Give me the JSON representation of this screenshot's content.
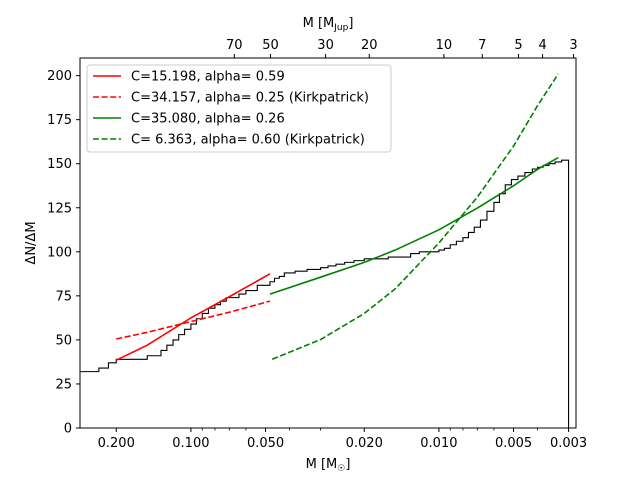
{
  "chart_data": {
    "type": "line",
    "xlabel": "M [M",
    "xlabel_sub": "☉",
    "xlabel_end": "]",
    "top_xlabel": "M [M",
    "top_xlabel_sub": "Jup",
    "top_xlabel_end": "]",
    "ylabel": "ΔN/ΔM",
    "x_scale": "log",
    "x_reversed": true,
    "xlim": [
      0.28,
      0.0028
    ],
    "ylim": [
      0,
      210
    ],
    "x_ticks": [
      {
        "value": 0.2,
        "label": "0.200"
      },
      {
        "value": 0.1,
        "label": "0.100"
      },
      {
        "value": 0.05,
        "label": "0.050"
      },
      {
        "value": 0.02,
        "label": "0.020"
      },
      {
        "value": 0.01,
        "label": "0.010"
      },
      {
        "value": 0.005,
        "label": "0.005"
      },
      {
        "value": 0.003,
        "label": "0.003"
      }
    ],
    "y_ticks": [
      0,
      25,
      50,
      75,
      100,
      125,
      150,
      175,
      200
    ],
    "top_ticks": [
      {
        "mjup": 70,
        "label": "70"
      },
      {
        "mjup": 50,
        "label": "50"
      },
      {
        "mjup": 30,
        "label": "30"
      },
      {
        "mjup": 20,
        "label": "20"
      },
      {
        "mjup": 10,
        "label": "10"
      },
      {
        "mjup": 7,
        "label": "7"
      },
      {
        "mjup": 5,
        "label": "5"
      },
      {
        "mjup": 4,
        "label": "4"
      },
      {
        "mjup": 3,
        "label": "3"
      }
    ],
    "legend_position": "top-left",
    "series": [
      {
        "name": "C=15.198, alpha= 0.59",
        "color": "#ff0000",
        "dash": "solid",
        "x": [
          0.2,
          0.15,
          0.1,
          0.07,
          0.048
        ],
        "y": [
          38.5,
          47.0,
          62.5,
          74.5,
          87.5
        ]
      },
      {
        "name": "C=34.157, alpha= 0.25 (Kirkpatrick)",
        "color": "#ff0000",
        "dash": "dashed",
        "x": [
          0.2,
          0.15,
          0.1,
          0.07,
          0.048
        ],
        "y": [
          50.5,
          54.3,
          60.4,
          65.7,
          72.0
        ]
      },
      {
        "name": "C=35.080, alpha= 0.26",
        "color": "#008000",
        "dash": "solid",
        "x": [
          0.048,
          0.03,
          0.02,
          0.015,
          0.01,
          0.007,
          0.005,
          0.004,
          0.0033
        ],
        "y": [
          76.0,
          85.6,
          94.0,
          101.0,
          112.5,
          124.8,
          137.5,
          146.8,
          153.5
        ]
      },
      {
        "name": "C= 6.363, alpha= 0.60 (Kirkpatrick)",
        "color": "#008000",
        "dash": "dashed",
        "x": [
          0.047,
          0.03,
          0.02,
          0.015,
          0.01,
          0.007,
          0.005,
          0.004,
          0.0033
        ],
        "y": [
          39.0,
          50.2,
          65.0,
          79.0,
          105.0,
          131.0,
          160.0,
          183.0,
          201.0
        ]
      }
    ],
    "step_series": {
      "color": "#000000",
      "x": [
        0.28,
        0.255,
        0.235,
        0.215,
        0.2,
        0.185,
        0.17,
        0.16,
        0.15,
        0.14,
        0.132,
        0.125,
        0.118,
        0.112,
        0.106,
        0.1,
        0.095,
        0.09,
        0.085,
        0.08,
        0.076,
        0.072,
        0.068,
        0.064,
        0.06,
        0.057,
        0.054,
        0.051,
        0.048,
        0.046,
        0.044,
        0.042,
        0.04,
        0.038,
        0.036,
        0.034,
        0.032,
        0.03,
        0.028,
        0.026,
        0.024,
        0.022,
        0.02,
        0.018,
        0.016,
        0.0145,
        0.013,
        0.012,
        0.011,
        0.01,
        0.0095,
        0.009,
        0.0085,
        0.008,
        0.0076,
        0.0072,
        0.0068,
        0.0064,
        0.006,
        0.0057,
        0.0054,
        0.0051,
        0.0048,
        0.0045,
        0.0042,
        0.004,
        0.0038,
        0.0036,
        0.0034,
        0.0032,
        0.003
      ],
      "y": [
        32,
        32,
        34,
        37,
        39,
        39,
        39,
        39,
        41,
        41,
        44,
        47,
        50,
        53,
        56,
        59,
        62,
        65,
        68,
        70,
        72,
        74,
        74,
        76,
        78,
        78,
        81,
        81,
        83,
        85,
        86,
        88,
        88,
        89,
        89,
        90,
        90,
        91,
        92,
        93,
        94,
        95,
        96,
        96,
        97,
        97,
        99,
        100,
        100,
        101,
        102,
        104,
        106,
        108,
        111,
        114,
        118,
        123,
        128,
        133,
        138,
        141,
        143,
        145,
        147,
        148,
        149,
        150,
        151,
        152,
        152
      ]
    }
  }
}
